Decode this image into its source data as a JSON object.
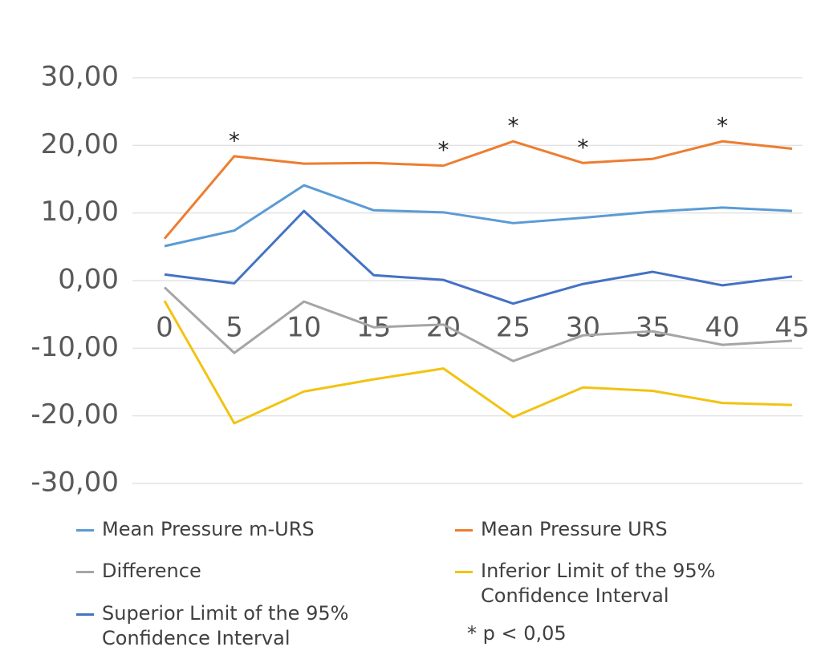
{
  "chart_data": {
    "type": "line",
    "x": [
      0,
      5,
      10,
      15,
      20,
      25,
      30,
      35,
      40,
      45
    ],
    "xlim": [
      0,
      45
    ],
    "xticks": [
      0,
      5,
      10,
      15,
      20,
      25,
      30,
      35,
      40,
      45
    ],
    "ylim": [
      -30,
      30
    ],
    "yticks": [
      {
        "value": 30,
        "label": "30,00"
      },
      {
        "value": 20,
        "label": "20,00"
      },
      {
        "value": 10,
        "label": "10,00"
      },
      {
        "value": 0,
        "label": "0,00"
      },
      {
        "value": -10,
        "label": "-10,00"
      },
      {
        "value": -20,
        "label": "-20,00"
      },
      {
        "value": -30,
        "label": "-30,00"
      }
    ],
    "grid": true,
    "series": [
      {
        "name": "Mean Pressure m-URS",
        "color": "#5b9bd5",
        "values": [
          5.1,
          7.4,
          14.1,
          10.4,
          10.1,
          8.5,
          9.3,
          10.2,
          10.8,
          10.3
        ]
      },
      {
        "name": "Mean Pressure URS",
        "color": "#ed7d31",
        "values": [
          6.2,
          18.4,
          17.3,
          17.4,
          17.0,
          20.6,
          17.4,
          18.0,
          20.6,
          19.5
        ]
      },
      {
        "name": "Difference",
        "color": "#a5a5a5",
        "values": [
          -1.0,
          -10.7,
          -3.1,
          -6.9,
          -6.5,
          -11.9,
          -8.1,
          -7.5,
          -9.5,
          -8.9
        ]
      },
      {
        "name": "Inferior Limit of the 95% Confidence Interval",
        "color": "#f2c311",
        "values": [
          -3.0,
          -21.1,
          -16.4,
          -14.6,
          -13.0,
          -20.2,
          -15.8,
          -16.3,
          -18.1,
          -18.4
        ]
      },
      {
        "name": "Superior Limit of the 95% Confidence Interval",
        "color": "#4472c4",
        "values": [
          0.9,
          -0.4,
          10.3,
          0.8,
          0.1,
          -3.4,
          -0.5,
          1.3,
          -0.7,
          0.6
        ]
      }
    ],
    "annotations": [
      {
        "x": 5,
        "text": "*"
      },
      {
        "x": 20,
        "text": "*"
      },
      {
        "x": 25,
        "text": "*"
      },
      {
        "x": 30,
        "text": "*"
      },
      {
        "x": 40,
        "text": "*"
      }
    ],
    "note": "* p < 0,05"
  }
}
